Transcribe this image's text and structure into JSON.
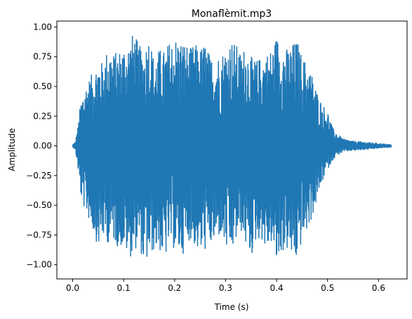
{
  "chart_data": {
    "type": "line",
    "title": "Monaflèmit.mp3",
    "xlabel": "Time (s)",
    "ylabel": "Amplitude",
    "xlim": [
      -0.031,
      0.656
    ],
    "ylim": [
      -1.12,
      1.05
    ],
    "x_ticks": [
      0.0,
      0.1,
      0.2,
      0.3,
      0.4,
      0.5,
      0.6
    ],
    "x_tick_labels": [
      "0.0",
      "0.1",
      "0.2",
      "0.3",
      "0.4",
      "0.5",
      "0.6"
    ],
    "y_ticks": [
      1.0,
      0.75,
      0.5,
      0.25,
      0.0,
      -0.25,
      -0.5,
      -0.75,
      -1.0
    ],
    "y_tick_labels": [
      "1.00",
      "0.75",
      "0.50",
      "0.25",
      "0.00",
      "−0.25",
      "−0.50",
      "−0.75",
      "−1.00"
    ],
    "grid": false,
    "legend": "none",
    "series": [
      {
        "color": "#1f77b4",
        "x_start": 0.0,
        "x_end": 0.625,
        "envelope": {
          "t": [
            0.0,
            0.005,
            0.01,
            0.015,
            0.02,
            0.03,
            0.04,
            0.05,
            0.06,
            0.07,
            0.08,
            0.09,
            0.1,
            0.11,
            0.12,
            0.13,
            0.14,
            0.15,
            0.16,
            0.17,
            0.18,
            0.19,
            0.2,
            0.21,
            0.22,
            0.23,
            0.24,
            0.25,
            0.26,
            0.27,
            0.28,
            0.29,
            0.3,
            0.31,
            0.32,
            0.33,
            0.34,
            0.35,
            0.36,
            0.37,
            0.38,
            0.39,
            0.4,
            0.41,
            0.42,
            0.43,
            0.44,
            0.45,
            0.46,
            0.47,
            0.48,
            0.49,
            0.5,
            0.51,
            0.52,
            0.53,
            0.55,
            0.58,
            0.6,
            0.625
          ],
          "max": [
            0.01,
            0.03,
            0.15,
            0.35,
            0.45,
            0.55,
            0.62,
            0.72,
            0.7,
            0.85,
            0.78,
            0.8,
            0.85,
            0.88,
            0.96,
            0.85,
            0.8,
            0.95,
            0.72,
            0.82,
            0.8,
            0.88,
            0.92,
            0.9,
            0.88,
            0.82,
            0.86,
            0.82,
            0.88,
            0.75,
            0.74,
            0.78,
            0.82,
            0.9,
            0.86,
            0.78,
            0.85,
            0.75,
            0.72,
            0.75,
            0.78,
            0.82,
            0.93,
            0.85,
            0.82,
            0.85,
            0.9,
            0.75,
            0.7,
            0.6,
            0.45,
            0.35,
            0.3,
            0.15,
            0.1,
            0.06,
            0.04,
            0.03,
            0.02,
            0.01
          ],
          "min": [
            -0.01,
            -0.03,
            -0.18,
            -0.4,
            -0.5,
            -0.6,
            -0.72,
            -0.85,
            -0.78,
            -0.82,
            -0.8,
            -0.86,
            -0.85,
            -0.95,
            -0.9,
            -0.82,
            -1.02,
            -0.95,
            -0.88,
            -0.88,
            -0.98,
            -0.82,
            -0.88,
            -0.92,
            -0.9,
            -0.78,
            -0.85,
            -0.92,
            -0.88,
            -0.85,
            -0.82,
            -0.75,
            -0.88,
            -0.92,
            -0.82,
            -0.72,
            -0.85,
            -0.95,
            -0.8,
            -0.78,
            -0.9,
            -0.82,
            -1.02,
            -0.9,
            -0.88,
            -0.95,
            -0.98,
            -0.8,
            -0.72,
            -0.6,
            -0.45,
            -0.3,
            -0.2,
            -0.12,
            -0.08,
            -0.05,
            -0.04,
            -0.03,
            -0.02,
            -0.01
          ]
        }
      }
    ]
  }
}
